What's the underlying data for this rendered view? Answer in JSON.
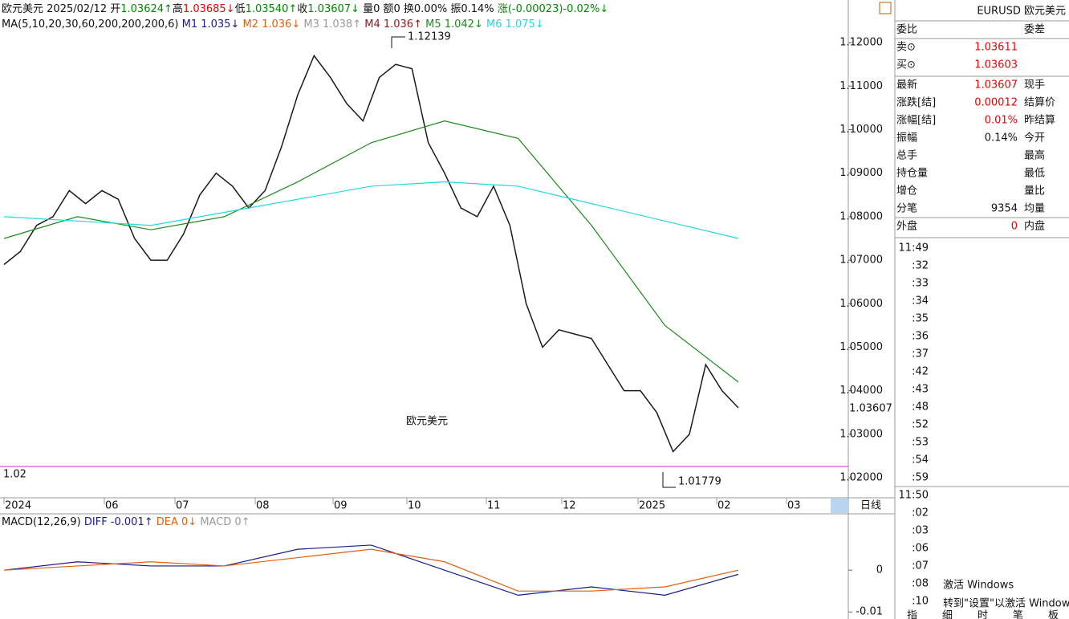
{
  "header": {
    "name": "欧元美元",
    "date": "2025/02/12",
    "open_label": "开",
    "open": "1.03624↑",
    "high_label": "高",
    "high": "1.03685↓",
    "low_label": "低",
    "low": "1.03540↑",
    "close_label": "收",
    "close": "1.03607↓",
    "volume": "量0",
    "amount": "额0",
    "turnover": "换0.00%",
    "amplitude": "振0.14%",
    "change_label": "涨",
    "change": "(-0.00023)-0.02%↓"
  },
  "ma_legend": {
    "params": "MA(5,10,20,30,60,200,200,200,6)",
    "m1": "M1 1.035↓",
    "m2": "M2 1.036↓",
    "m3": "M3 1.038↑",
    "m4": "M4 1.036↑",
    "m5": "M5 1.042↓",
    "m6": "M6 1.075↓"
  },
  "annotations": {
    "high_mark": "1.12139",
    "low_mark": "1.01779",
    "support": "1.02",
    "current_price": "1.03607",
    "watermark": "欧元美元",
    "period": "日线"
  },
  "x_labels": [
    "2024",
    "06",
    "07",
    "08",
    "09",
    "10",
    "11",
    "12",
    "2025",
    "02",
    "03"
  ],
  "macd_legend": {
    "params": "MACD(12,26,9)",
    "diff": "DIFF -0.001↑",
    "dea": "DEA 0↓",
    "macd": "MACD 0↑"
  },
  "quote_panel": {
    "title": "EURUSD 欧元美元",
    "rows": [
      [
        "委比",
        "",
        "委差"
      ],
      [
        "卖⊙",
        "1.03611",
        ""
      ],
      [
        "买⊙",
        "1.03603",
        ""
      ],
      [
        "最新",
        "1.03607",
        "现手"
      ],
      [
        "涨跌[结]",
        "0.00012",
        "结算价"
      ],
      [
        "涨幅[结]",
        "0.01%",
        "昨结算"
      ],
      [
        "振幅",
        "0.14%",
        "今开"
      ],
      [
        "总手",
        "",
        "最高"
      ],
      [
        "持仓量",
        "",
        "最低"
      ],
      [
        "增仓",
        "",
        "量比"
      ],
      [
        "分笔",
        "9354",
        "均量"
      ],
      [
        "外盘",
        "0",
        "内盘"
      ]
    ],
    "ticks": [
      "11:49",
      ":32",
      ":33",
      ":34",
      ":35",
      ":36",
      ":37",
      ":42",
      ":43",
      ":48",
      ":52",
      ":53",
      ":54",
      ":59",
      "11:50",
      ":02",
      ":03",
      ":06",
      ":07",
      ":08",
      ":10"
    ],
    "tabs": [
      "指",
      "细",
      "时",
      "笔",
      "板"
    ]
  },
  "os_watermark": {
    "line1": "激活 Windows",
    "line2": "转到\"设置\"以激活 Windows"
  },
  "chart_data": [
    {
      "type": "line",
      "ylim": [
        1.0154,
        1.1298
      ],
      "yticks": [
        {
          "value": 1.12,
          "label": "1.12000"
        },
        {
          "value": 1.11,
          "label": "1.11000"
        },
        {
          "value": 1.1,
          "label": "1.10000"
        },
        {
          "value": 1.09,
          "label": "1.09000"
        },
        {
          "value": 1.08,
          "label": "1.08000"
        },
        {
          "value": 1.07,
          "label": "1.07000"
        },
        {
          "value": 1.06,
          "label": "1.06000"
        },
        {
          "value": 1.05,
          "label": "1.05000"
        },
        {
          "value": 1.04,
          "label": "1.04000"
        },
        {
          "value": 1.03,
          "label": "1.03000"
        },
        {
          "value": 1.02,
          "label": "1.02000"
        }
      ],
      "series": [
        {
          "name": "收",
          "color": "#1a1a1a",
          "values": [
            1.069,
            1.072,
            1.078,
            1.08,
            1.086,
            1.083,
            1.086,
            1.084,
            1.075,
            1.07,
            1.07,
            1.076,
            1.085,
            1.09,
            1.087,
            1.082,
            1.086,
            1.096,
            1.108,
            1.117,
            1.112,
            1.106,
            1.102,
            1.112,
            1.115,
            1.114,
            1.097,
            1.09,
            1.082,
            1.08,
            1.087,
            1.078,
            1.06,
            1.05,
            1.054,
            1.053,
            1.052,
            1.046,
            1.04,
            1.04,
            1.035,
            1.026,
            1.03,
            1.046,
            1.04,
            1.03607
          ]
        },
        {
          "name": "M5",
          "color": "#1a8a1a",
          "values": [
            1.075,
            1.08,
            1.077,
            1.08,
            1.088,
            1.097,
            1.102,
            1.098,
            1.078,
            1.055,
            1.042
          ]
        },
        {
          "name": "M6",
          "color": "#20d8e0",
          "values": [
            1.08,
            1.079,
            1.078,
            1.081,
            1.084,
            1.087,
            1.088,
            1.087,
            1.083,
            1.079,
            1.075
          ]
        }
      ]
    },
    {
      "type": "line",
      "ylim": [
        -0.0115,
        0.0131
      ],
      "yticks": [
        0,
        -0.01
      ],
      "series": [
        {
          "name": "DIFF",
          "color": "#1a1a8a",
          "values": [
            0,
            0.002,
            0.001,
            0.001,
            0.005,
            0.006,
            0,
            -0.006,
            -0.004,
            -0.006,
            -0.001
          ]
        },
        {
          "name": "DEA",
          "color": "#e06010",
          "values": [
            0,
            0.001,
            0.002,
            0.001,
            0.003,
            0.005,
            0.002,
            -0.005,
            -0.005,
            -0.004,
            0
          ]
        }
      ]
    }
  ]
}
